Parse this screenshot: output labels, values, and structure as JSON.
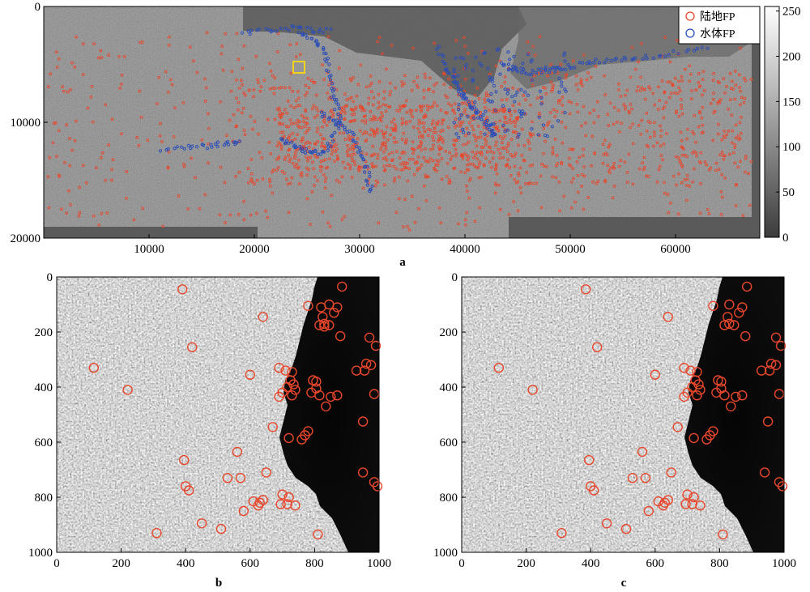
{
  "chart_data": [
    {
      "id": "a",
      "type": "scatter",
      "panel_label": "a",
      "background": "grayscale SAR image",
      "xlim": [
        0,
        68000
      ],
      "ylim": [
        20000,
        0
      ],
      "xticks": [
        10000,
        20000,
        30000,
        40000,
        50000,
        60000
      ],
      "yticks": [
        0,
        10000,
        20000
      ],
      "legend": {
        "placement": "top-right",
        "entries": [
          {
            "label": "陆地FP",
            "color": "#e8472c",
            "marker": "circle"
          },
          {
            "label": "水体FP",
            "color": "#2a4db8",
            "marker": "circle"
          }
        ]
      },
      "colorbar": {
        "range": [
          0,
          255
        ],
        "ticks": [
          0,
          50,
          100,
          150,
          200,
          250
        ]
      },
      "highlight_box": {
        "x": 24500,
        "y": 5400,
        "color": "#f2d21b"
      }
    },
    {
      "id": "b",
      "type": "scatter",
      "panel_label": "b",
      "background": "grayscale SAR image (zoomed)",
      "xlim": [
        0,
        1000
      ],
      "ylim": [
        1000,
        0
      ],
      "ticks": [
        0,
        200,
        400,
        600,
        800,
        1000
      ],
      "marker_color": "#e8472c",
      "points": [
        [
          390,
          45
        ],
        [
          885,
          35
        ],
        [
          640,
          145
        ],
        [
          780,
          105
        ],
        [
          820,
          110
        ],
        [
          845,
          100
        ],
        [
          870,
          110
        ],
        [
          860,
          130
        ],
        [
          825,
          145
        ],
        [
          830,
          170
        ],
        [
          845,
          175
        ],
        [
          830,
          180
        ],
        [
          815,
          175
        ],
        [
          880,
          215
        ],
        [
          970,
          220
        ],
        [
          990,
          250
        ],
        [
          420,
          255
        ],
        [
          600,
          355
        ],
        [
          690,
          330
        ],
        [
          710,
          340
        ],
        [
          730,
          345
        ],
        [
          725,
          375
        ],
        [
          735,
          390
        ],
        [
          715,
          400
        ],
        [
          740,
          410
        ],
        [
          700,
          420
        ],
        [
          690,
          435
        ],
        [
          730,
          430
        ],
        [
          795,
          375
        ],
        [
          805,
          380
        ],
        [
          790,
          420
        ],
        [
          805,
          405
        ],
        [
          815,
          430
        ],
        [
          850,
          435
        ],
        [
          870,
          430
        ],
        [
          960,
          315
        ],
        [
          975,
          320
        ],
        [
          955,
          340
        ],
        [
          930,
          340
        ],
        [
          985,
          425
        ],
        [
          115,
          330
        ],
        [
          220,
          410
        ],
        [
          835,
          470
        ],
        [
          950,
          525
        ],
        [
          670,
          545
        ],
        [
          780,
          560
        ],
        [
          770,
          575
        ],
        [
          760,
          590
        ],
        [
          720,
          585
        ],
        [
          560,
          635
        ],
        [
          395,
          665
        ],
        [
          400,
          760
        ],
        [
          410,
          775
        ],
        [
          530,
          730
        ],
        [
          570,
          730
        ],
        [
          650,
          710
        ],
        [
          950,
          710
        ],
        [
          985,
          745
        ],
        [
          995,
          760
        ],
        [
          610,
          815
        ],
        [
          630,
          820
        ],
        [
          640,
          810
        ],
        [
          625,
          830
        ],
        [
          700,
          790
        ],
        [
          720,
          800
        ],
        [
          695,
          825
        ],
        [
          715,
          825
        ],
        [
          740,
          830
        ],
        [
          580,
          850
        ],
        [
          450,
          895
        ],
        [
          510,
          915
        ],
        [
          310,
          930
        ],
        [
          810,
          935
        ]
      ]
    },
    {
      "id": "c",
      "type": "scatter",
      "panel_label": "c",
      "background": "grayscale SAR image (zoomed)",
      "xlim": [
        0,
        1000
      ],
      "ylim": [
        1000,
        0
      ],
      "ticks": [
        0,
        200,
        400,
        600,
        800,
        1000
      ],
      "marker_color": "#e8472c",
      "points": [
        [
          385,
          45
        ],
        [
          885,
          35
        ],
        [
          640,
          145
        ],
        [
          780,
          105
        ],
        [
          830,
          100
        ],
        [
          870,
          110
        ],
        [
          860,
          130
        ],
        [
          825,
          145
        ],
        [
          830,
          170
        ],
        [
          845,
          175
        ],
        [
          815,
          175
        ],
        [
          880,
          215
        ],
        [
          975,
          220
        ],
        [
          990,
          250
        ],
        [
          420,
          255
        ],
        [
          600,
          355
        ],
        [
          690,
          330
        ],
        [
          710,
          340
        ],
        [
          730,
          345
        ],
        [
          725,
          375
        ],
        [
          735,
          390
        ],
        [
          715,
          400
        ],
        [
          740,
          410
        ],
        [
          700,
          420
        ],
        [
          690,
          435
        ],
        [
          730,
          430
        ],
        [
          795,
          375
        ],
        [
          805,
          380
        ],
        [
          790,
          420
        ],
        [
          805,
          405
        ],
        [
          815,
          430
        ],
        [
          850,
          435
        ],
        [
          870,
          430
        ],
        [
          960,
          315
        ],
        [
          975,
          320
        ],
        [
          955,
          340
        ],
        [
          930,
          340
        ],
        [
          985,
          425
        ],
        [
          115,
          330
        ],
        [
          220,
          410
        ],
        [
          835,
          470
        ],
        [
          950,
          525
        ],
        [
          670,
          545
        ],
        [
          780,
          560
        ],
        [
          770,
          575
        ],
        [
          760,
          590
        ],
        [
          720,
          585
        ],
        [
          560,
          635
        ],
        [
          395,
          665
        ],
        [
          400,
          760
        ],
        [
          410,
          775
        ],
        [
          530,
          730
        ],
        [
          570,
          730
        ],
        [
          650,
          710
        ],
        [
          940,
          710
        ],
        [
          985,
          745
        ],
        [
          995,
          760
        ],
        [
          610,
          815
        ],
        [
          630,
          820
        ],
        [
          640,
          810
        ],
        [
          625,
          830
        ],
        [
          700,
          790
        ],
        [
          720,
          800
        ],
        [
          695,
          825
        ],
        [
          715,
          825
        ],
        [
          740,
          830
        ],
        [
          580,
          850
        ],
        [
          450,
          895
        ],
        [
          510,
          915
        ],
        [
          310,
          930
        ],
        [
          810,
          935
        ]
      ]
    }
  ]
}
